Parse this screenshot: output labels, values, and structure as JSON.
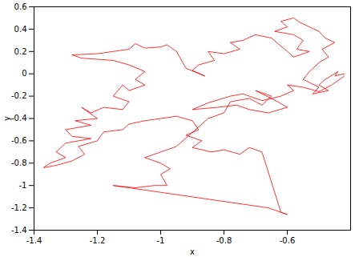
{
  "chart_data": {
    "type": "line",
    "x_label": "x",
    "y_label": "y",
    "color": "#ff0000",
    "xlim": [
      -1.4,
      -0.4
    ],
    "xticks": [
      -1.4,
      -1.2,
      -1,
      -0.8,
      -0.6
    ],
    "ylim": [
      -1.4,
      0.6
    ],
    "yticks": [
      -1.4,
      -1.2,
      -1,
      -0.8,
      -0.6,
      -0.4,
      -0.2,
      0,
      0.2,
      0.4,
      0.6
    ],
    "grid": false,
    "x": [
      -0.42,
      -0.45,
      -0.44,
      -0.48,
      -0.5,
      -0.47,
      -0.52,
      -0.5,
      -0.55,
      -0.53,
      -0.5,
      -0.47,
      -0.49,
      -0.45,
      -0.48,
      -0.5,
      -0.53,
      -0.56,
      -0.58,
      -0.62,
      -0.6,
      -0.64,
      -0.58,
      -0.55,
      -0.57,
      -0.53,
      -0.58,
      -0.6,
      -0.65,
      -0.7,
      -0.74,
      -0.78,
      -0.75,
      -0.8,
      -0.85,
      -0.83,
      -0.88,
      -0.9,
      -0.86,
      -0.92,
      -0.95,
      -0.98,
      -1.0,
      -1.05,
      -1.08,
      -1.1,
      -1.15,
      -1.2,
      -1.28,
      -1.25,
      -1.15,
      -1.1,
      -1.05,
      -1.08,
      -1.05,
      -1.1,
      -1.12,
      -1.15,
      -1.1,
      -1.12,
      -1.18,
      -1.22,
      -1.25,
      -1.2,
      -1.27,
      -1.22,
      -1.3,
      -1.28,
      -1.22,
      -1.3,
      -1.33,
      -1.3,
      -1.35,
      -1.37,
      -1.33,
      -1.28,
      -1.24,
      -1.26,
      -1.2,
      -1.18,
      -1.12,
      -1.1,
      -1.05,
      -1.0,
      -0.95,
      -0.9,
      -0.88,
      -0.92,
      -0.87,
      -0.9,
      -0.84,
      -0.8,
      -0.75,
      -0.72,
      -0.68,
      -0.62,
      -0.6,
      -0.66,
      -1.15,
      -1.08,
      -1.02,
      -0.98,
      -1.0,
      -0.97,
      -1.0,
      -1.05,
      -1.0,
      -0.95,
      -0.85,
      -0.8,
      -0.78,
      -0.72,
      -0.68,
      -0.65,
      -0.7,
      -0.63,
      -0.6,
      -0.66,
      -0.72,
      -0.76,
      -0.82,
      -0.9,
      -0.85,
      -0.78,
      -0.74,
      -0.68,
      -0.62,
      -0.58,
      -0.6,
      -0.55,
      -0.5,
      -0.46,
      -0.42
    ],
    "values": [
      0.0,
      -0.02,
      0.02,
      -0.05,
      -0.1,
      -0.15,
      -0.18,
      -0.12,
      -0.05,
      0.02,
      0.1,
      0.15,
      0.22,
      0.28,
      0.32,
      0.38,
      0.42,
      0.46,
      0.5,
      0.47,
      0.42,
      0.38,
      0.35,
      0.3,
      0.22,
      0.2,
      0.15,
      0.2,
      0.32,
      0.35,
      0.3,
      0.28,
      0.22,
      0.18,
      0.2,
      0.12,
      0.08,
      0.03,
      -0.02,
      0.05,
      0.2,
      0.26,
      0.24,
      0.23,
      0.27,
      0.22,
      0.2,
      0.18,
      0.17,
      0.14,
      0.12,
      0.08,
      0.02,
      -0.05,
      -0.1,
      -0.15,
      -0.1,
      -0.2,
      -0.25,
      -0.32,
      -0.3,
      -0.35,
      -0.3,
      -0.4,
      -0.42,
      -0.46,
      -0.5,
      -0.56,
      -0.58,
      -0.62,
      -0.7,
      -0.75,
      -0.8,
      -0.84,
      -0.82,
      -0.78,
      -0.72,
      -0.65,
      -0.6,
      -0.52,
      -0.5,
      -0.45,
      -0.42,
      -0.4,
      -0.38,
      -0.42,
      -0.5,
      -0.55,
      -0.6,
      -0.66,
      -0.7,
      -0.68,
      -0.72,
      -0.66,
      -0.7,
      -1.24,
      -1.26,
      -1.2,
      -1.0,
      -1.02,
      -1.0,
      -1.0,
      -0.9,
      -0.85,
      -0.8,
      -0.75,
      -0.7,
      -0.65,
      -0.4,
      -0.35,
      -0.25,
      -0.22,
      -0.28,
      -0.2,
      -0.15,
      -0.25,
      -0.3,
      -0.35,
      -0.32,
      -0.28,
      -0.3,
      -0.32,
      -0.26,
      -0.2,
      -0.18,
      -0.24,
      -0.2,
      -0.15,
      -0.1,
      -0.12,
      -0.16,
      -0.1,
      -0.02
    ]
  }
}
